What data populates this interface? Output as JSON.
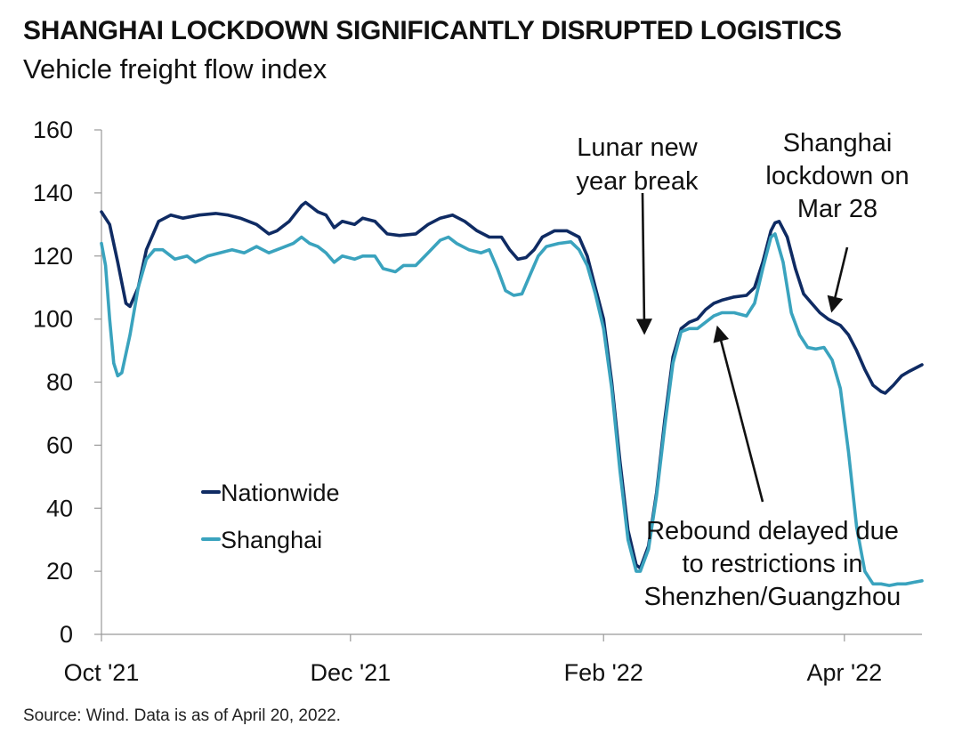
{
  "title": "SHANGHAI LOCKDOWN SIGNIFICANTLY DISRUPTED LOGISTICS",
  "subtitle": "Vehicle freight flow index",
  "source": "Source: Wind. Data is as of April 20, 2022.",
  "colors": {
    "nationwide": "#0f2b63",
    "shanghai": "#3aa3be",
    "axis": "#999999",
    "text": "#111111"
  },
  "chart_data": {
    "type": "line",
    "x_type": "date",
    "x_range": [
      "2021-10-01",
      "2022-04-20"
    ],
    "ylim": [
      0,
      160
    ],
    "y_ticks": [
      0,
      20,
      40,
      60,
      80,
      100,
      120,
      140,
      160
    ],
    "x_ticks": [
      {
        "date": "2021-10-01",
        "label": "Oct '21"
      },
      {
        "date": "2021-12-01",
        "label": "Dec '21"
      },
      {
        "date": "2022-02-01",
        "label": "Feb '22"
      },
      {
        "date": "2022-04-01",
        "label": "Apr '22"
      }
    ],
    "legend": {
      "placement": "lower-left"
    },
    "grid": false,
    "series": [
      {
        "name": "Nationwide",
        "color": "#0f2b63",
        "points": [
          [
            "2021-10-01",
            134
          ],
          [
            "2021-10-03",
            130
          ],
          [
            "2021-10-05",
            118
          ],
          [
            "2021-10-07",
            105
          ],
          [
            "2021-10-08",
            104
          ],
          [
            "2021-10-10",
            110
          ],
          [
            "2021-10-12",
            122
          ],
          [
            "2021-10-15",
            131
          ],
          [
            "2021-10-18",
            133
          ],
          [
            "2021-10-21",
            132
          ],
          [
            "2021-10-25",
            133
          ],
          [
            "2021-10-29",
            133.5
          ],
          [
            "2021-11-01",
            133
          ],
          [
            "2021-11-04",
            132
          ],
          [
            "2021-11-08",
            130
          ],
          [
            "2021-11-11",
            127
          ],
          [
            "2021-11-13",
            128
          ],
          [
            "2021-11-16",
            131
          ],
          [
            "2021-11-19",
            136
          ],
          [
            "2021-11-20",
            137
          ],
          [
            "2021-11-23",
            134
          ],
          [
            "2021-11-25",
            133
          ],
          [
            "2021-11-27",
            129
          ],
          [
            "2021-11-29",
            131
          ],
          [
            "2021-12-02",
            130
          ],
          [
            "2021-12-04",
            132
          ],
          [
            "2021-12-07",
            131
          ],
          [
            "2021-12-10",
            127
          ],
          [
            "2021-12-13",
            126.5
          ],
          [
            "2021-12-17",
            127
          ],
          [
            "2021-12-20",
            130
          ],
          [
            "2021-12-23",
            132
          ],
          [
            "2021-12-26",
            133
          ],
          [
            "2021-12-29",
            131
          ],
          [
            "2022-01-01",
            128
          ],
          [
            "2022-01-04",
            126
          ],
          [
            "2022-01-07",
            126
          ],
          [
            "2022-01-09",
            122
          ],
          [
            "2022-01-11",
            119
          ],
          [
            "2022-01-13",
            119.5
          ],
          [
            "2022-01-15",
            122
          ],
          [
            "2022-01-17",
            126
          ],
          [
            "2022-01-20",
            128
          ],
          [
            "2022-01-23",
            128
          ],
          [
            "2022-01-26",
            126
          ],
          [
            "2022-01-28",
            120
          ],
          [
            "2022-01-30",
            110
          ],
          [
            "2022-02-01",
            100
          ],
          [
            "2022-02-03",
            80
          ],
          [
            "2022-02-05",
            55
          ],
          [
            "2022-02-07",
            33
          ],
          [
            "2022-02-09",
            22
          ],
          [
            "2022-02-10",
            21
          ],
          [
            "2022-02-12",
            28
          ],
          [
            "2022-02-14",
            45
          ],
          [
            "2022-02-16",
            68
          ],
          [
            "2022-02-18",
            88
          ],
          [
            "2022-02-20",
            97
          ],
          [
            "2022-02-22",
            99
          ],
          [
            "2022-02-24",
            100
          ],
          [
            "2022-02-26",
            103
          ],
          [
            "2022-02-28",
            105
          ],
          [
            "2022-03-02",
            106
          ],
          [
            "2022-03-05",
            107
          ],
          [
            "2022-03-08",
            107.5
          ],
          [
            "2022-03-10",
            110
          ],
          [
            "2022-03-12",
            118
          ],
          [
            "2022-03-14",
            128
          ],
          [
            "2022-03-15",
            130.5
          ],
          [
            "2022-03-16",
            131
          ],
          [
            "2022-03-18",
            126
          ],
          [
            "2022-03-20",
            116
          ],
          [
            "2022-03-22",
            108
          ],
          [
            "2022-03-24",
            105
          ],
          [
            "2022-03-26",
            102
          ],
          [
            "2022-03-28",
            100
          ],
          [
            "2022-03-31",
            98
          ],
          [
            "2022-04-02",
            95
          ],
          [
            "2022-04-04",
            90
          ],
          [
            "2022-04-06",
            84
          ],
          [
            "2022-04-08",
            79
          ],
          [
            "2022-04-10",
            77
          ],
          [
            "2022-04-11",
            76.5
          ],
          [
            "2022-04-13",
            79
          ],
          [
            "2022-04-15",
            82
          ],
          [
            "2022-04-17",
            83.5
          ],
          [
            "2022-04-20",
            85.5
          ]
        ]
      },
      {
        "name": "Shanghai",
        "color": "#3aa3be",
        "points": [
          [
            "2021-10-01",
            124
          ],
          [
            "2021-10-02",
            117
          ],
          [
            "2021-10-03",
            100
          ],
          [
            "2021-10-04",
            86
          ],
          [
            "2021-10-05",
            82
          ],
          [
            "2021-10-06",
            83
          ],
          [
            "2021-10-08",
            95
          ],
          [
            "2021-10-10",
            110
          ],
          [
            "2021-10-12",
            119
          ],
          [
            "2021-10-14",
            122
          ],
          [
            "2021-10-16",
            122
          ],
          [
            "2021-10-19",
            119
          ],
          [
            "2021-10-22",
            120
          ],
          [
            "2021-10-24",
            118
          ],
          [
            "2021-10-27",
            120
          ],
          [
            "2021-10-30",
            121
          ],
          [
            "2021-11-02",
            122
          ],
          [
            "2021-11-05",
            121
          ],
          [
            "2021-11-08",
            123
          ],
          [
            "2021-11-11",
            121
          ],
          [
            "2021-11-14",
            122.5
          ],
          [
            "2021-11-17",
            124
          ],
          [
            "2021-11-19",
            126
          ],
          [
            "2021-11-21",
            124
          ],
          [
            "2021-11-23",
            123
          ],
          [
            "2021-11-25",
            121
          ],
          [
            "2021-11-27",
            118
          ],
          [
            "2021-11-29",
            120
          ],
          [
            "2021-12-02",
            119
          ],
          [
            "2021-12-04",
            120
          ],
          [
            "2021-12-07",
            120
          ],
          [
            "2021-12-09",
            116
          ],
          [
            "2021-12-12",
            115
          ],
          [
            "2021-12-14",
            117
          ],
          [
            "2021-12-17",
            117
          ],
          [
            "2021-12-20",
            121
          ],
          [
            "2021-12-23",
            125
          ],
          [
            "2021-12-25",
            126
          ],
          [
            "2021-12-27",
            124
          ],
          [
            "2021-12-30",
            122
          ],
          [
            "2022-01-02",
            121
          ],
          [
            "2022-01-04",
            122
          ],
          [
            "2022-01-06",
            116
          ],
          [
            "2022-01-08",
            109
          ],
          [
            "2022-01-10",
            107.5
          ],
          [
            "2022-01-12",
            108
          ],
          [
            "2022-01-14",
            114
          ],
          [
            "2022-01-16",
            120
          ],
          [
            "2022-01-18",
            123
          ],
          [
            "2022-01-21",
            124
          ],
          [
            "2022-01-24",
            124.5
          ],
          [
            "2022-01-26",
            122
          ],
          [
            "2022-01-28",
            117
          ],
          [
            "2022-01-30",
            108
          ],
          [
            "2022-02-01",
            97
          ],
          [
            "2022-02-03",
            78
          ],
          [
            "2022-02-05",
            52
          ],
          [
            "2022-02-07",
            30
          ],
          [
            "2022-02-09",
            20
          ],
          [
            "2022-02-10",
            20
          ],
          [
            "2022-02-12",
            27
          ],
          [
            "2022-02-14",
            44
          ],
          [
            "2022-02-16",
            66
          ],
          [
            "2022-02-18",
            86
          ],
          [
            "2022-02-20",
            96
          ],
          [
            "2022-02-22",
            97
          ],
          [
            "2022-02-24",
            97
          ],
          [
            "2022-02-26",
            99
          ],
          [
            "2022-02-28",
            101
          ],
          [
            "2022-03-02",
            102
          ],
          [
            "2022-03-05",
            102
          ],
          [
            "2022-03-08",
            101
          ],
          [
            "2022-03-10",
            105
          ],
          [
            "2022-03-12",
            116
          ],
          [
            "2022-03-14",
            126
          ],
          [
            "2022-03-15",
            127
          ],
          [
            "2022-03-17",
            118
          ],
          [
            "2022-03-19",
            102
          ],
          [
            "2022-03-21",
            95
          ],
          [
            "2022-03-23",
            91
          ],
          [
            "2022-03-25",
            90.5
          ],
          [
            "2022-03-27",
            91
          ],
          [
            "2022-03-29",
            87
          ],
          [
            "2022-03-31",
            78
          ],
          [
            "2022-04-02",
            58
          ],
          [
            "2022-04-04",
            34
          ],
          [
            "2022-04-06",
            20
          ],
          [
            "2022-04-08",
            16
          ],
          [
            "2022-04-10",
            16
          ],
          [
            "2022-04-12",
            15.5
          ],
          [
            "2022-04-14",
            16
          ],
          [
            "2022-04-16",
            16
          ],
          [
            "2022-04-18",
            16.5
          ],
          [
            "2022-04-20",
            17
          ]
        ]
      }
    ],
    "annotations": [
      {
        "id": "lunar",
        "lines": [
          "Lunar new",
          "year break"
        ],
        "arrow_target": [
          "2022-02-11",
          96
        ]
      },
      {
        "id": "lockdown",
        "lines": [
          "Shanghai",
          "lockdown on",
          "Mar 28"
        ],
        "arrow_target": [
          "2022-03-29",
          103
        ]
      },
      {
        "id": "rebound",
        "lines": [
          "Rebound delayed due",
          "to restrictions in",
          "Shenzhen/Guangzhou"
        ],
        "arrow_target": [
          "2022-03-01",
          97
        ]
      }
    ]
  }
}
